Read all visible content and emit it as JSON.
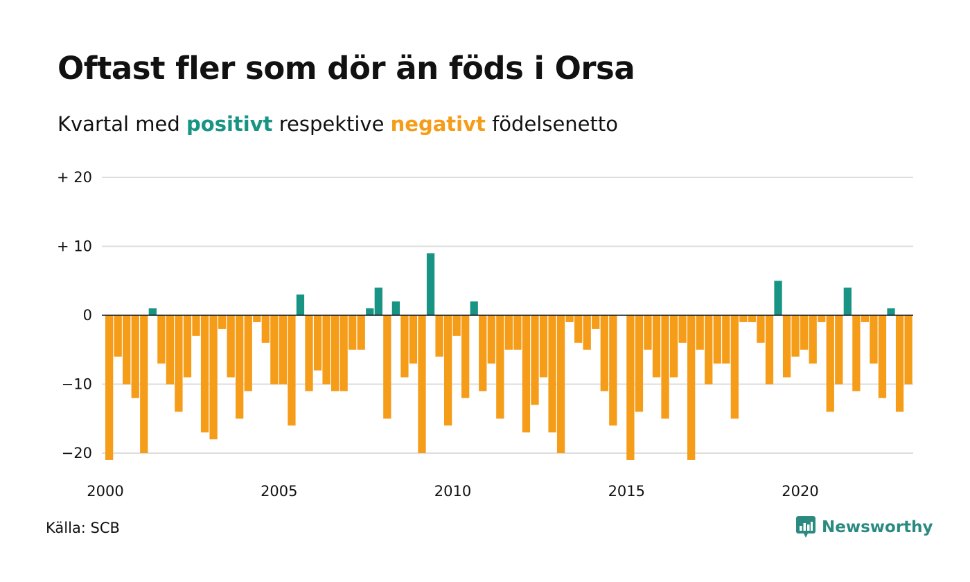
{
  "header": {
    "title": "Oftast fler som dör än föds i Orsa",
    "subtitle_prefix": "Kvartal med",
    "subtitle_positive": "positivt",
    "subtitle_middle": "respektive",
    "subtitle_negative": "negativt",
    "subtitle_suffix": "födelsenetto"
  },
  "colors": {
    "positive": "#179483",
    "negative": "#f59c19",
    "grid": "#dddddd",
    "zero_line": "#111111"
  },
  "chart_data": {
    "type": "bar",
    "title": "Oftast fler som dör än föds i Orsa",
    "subtitle": "Kvartal med positivt respektive negativt födelsenetto",
    "xlabel": "",
    "ylabel": "",
    "x_start": "2000 Q1",
    "ylim": [
      -23,
      20
    ],
    "y_ticks": [
      20,
      10,
      0,
      -10,
      -20
    ],
    "y_tick_labels": [
      "+ 20",
      "+ 10",
      "0",
      "−10",
      "−20"
    ],
    "x_tick_labels": [
      "2000",
      "2005",
      "2010",
      "2015",
      "2020"
    ],
    "grid": true,
    "legend": "none",
    "values": [
      -21,
      -6,
      -10,
      -12,
      -20,
      1,
      -7,
      -10,
      -14,
      -9,
      -3,
      -17,
      -18,
      -2,
      -9,
      -15,
      -11,
      -1,
      -4,
      -10,
      -10,
      -16,
      3,
      -11,
      -8,
      -10,
      -11,
      -11,
      -5,
      -5,
      1,
      4,
      -15,
      2,
      -9,
      -7,
      -20,
      9,
      -6,
      -16,
      -3,
      -12,
      2,
      -11,
      -7,
      -15,
      -5,
      -5,
      -17,
      -13,
      -9,
      -17,
      -20,
      -1,
      -4,
      -5,
      -2,
      -11,
      -16,
      0,
      -21,
      -14,
      -5,
      -9,
      -15,
      -9,
      -4,
      -21,
      -5,
      -10,
      -7,
      -7,
      -15,
      -1,
      -1,
      -4,
      -10,
      5,
      -9,
      -6,
      -5,
      -7,
      -1,
      -14,
      -10,
      4,
      -11,
      -1,
      -7,
      -12,
      1,
      -14,
      -10
    ]
  },
  "footer": {
    "source": "Källa: SCB",
    "brand": "Newsworthy"
  }
}
